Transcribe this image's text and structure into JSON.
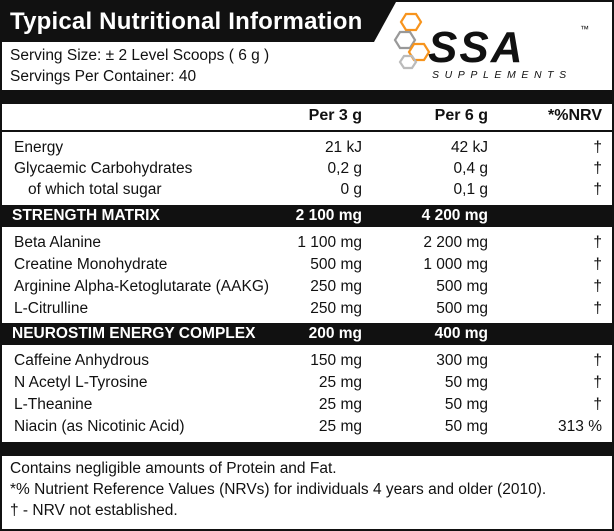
{
  "title": "Typical Nutritional Information",
  "serving_size": "Serving Size: ± 2 Level Scoops ( 6 g )",
  "servings_per_container": "Servings Per Container: 40",
  "logo": {
    "brand": "SSA",
    "tagline": "SUPPLEMENTS",
    "tm": "™",
    "accent": "#f7941d"
  },
  "columns": {
    "per_3g": "Per 3 g",
    "per_6g": "Per 6 g",
    "nrv": "*%NRV"
  },
  "basic_rows": [
    {
      "name": "Energy",
      "per_3g": "21 kJ",
      "per_6g": "42 kJ",
      "nrv": "†"
    },
    {
      "name": "Glycaemic Carbohydrates",
      "per_3g": "0,2 g",
      "per_6g": "0,4 g",
      "nrv": "†"
    },
    {
      "name": "of which total sugar",
      "per_3g": "0 g",
      "per_6g": "0,1 g",
      "nrv": "†"
    }
  ],
  "strength_matrix": {
    "name": "STRENGTH MATRIX",
    "per_3g": "2 100 mg",
    "per_6g": "4 200 mg",
    "rows": [
      {
        "name": "Beta Alanine",
        "per_3g": "1 100 mg",
        "per_6g": "2 200 mg",
        "nrv": "†"
      },
      {
        "name": "Creatine Monohydrate",
        "per_3g": "500 mg",
        "per_6g": "1 000 mg",
        "nrv": "†"
      },
      {
        "name": "Arginine Alpha-Ketoglutarate (AAKG)",
        "per_3g": "250 mg",
        "per_6g": "500 mg",
        "nrv": "†"
      },
      {
        "name": "L-Citrulline",
        "per_3g": "250 mg",
        "per_6g": "500 mg",
        "nrv": "†"
      }
    ]
  },
  "neurostim": {
    "name": "NEUROSTIM ENERGY COMPLEX",
    "per_3g": "200 mg",
    "per_6g": "400 mg",
    "rows": [
      {
        "name": "Caffeine Anhydrous",
        "per_3g": "150 mg",
        "per_6g": "300 mg",
        "nrv": "†"
      },
      {
        "name": "N Acetyl L-Tyrosine",
        "per_3g": "25 mg",
        "per_6g": "50 mg",
        "nrv": "†"
      },
      {
        "name": "L-Theanine",
        "per_3g": "25 mg",
        "per_6g": "50 mg",
        "nrv": "†"
      },
      {
        "name": "Niacin (as Nicotinic Acid)",
        "per_3g": "25 mg",
        "per_6g": "50 mg",
        "nrv": "313 %"
      }
    ]
  },
  "footer": [
    "Contains negligible amounts of Protein and Fat.",
    "*% Nutrient Reference Values (NRVs)  for individuals 4 years and older (2010).",
    "† - NRV not established."
  ]
}
